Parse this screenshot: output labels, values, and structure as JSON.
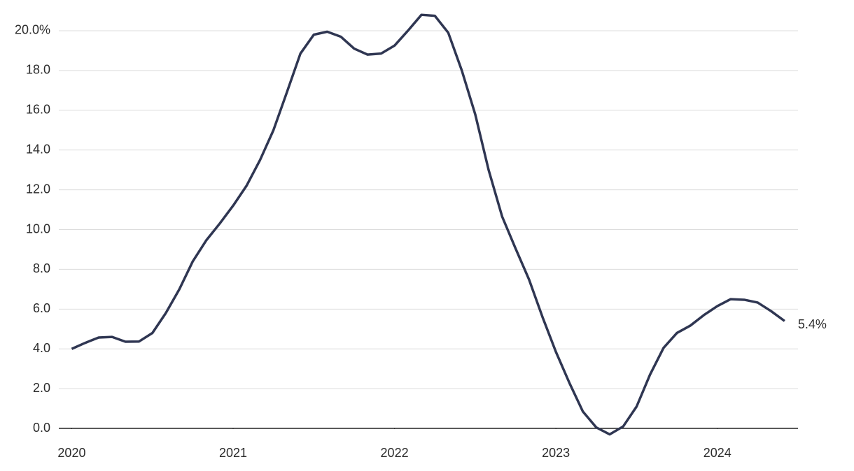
{
  "chart_data": {
    "type": "line",
    "x": [
      2020,
      2020.083,
      2020.167,
      2020.25,
      2020.333,
      2020.417,
      2020.5,
      2020.583,
      2020.667,
      2020.75,
      2020.833,
      2020.917,
      2021,
      2021.083,
      2021.167,
      2021.25,
      2021.333,
      2021.417,
      2021.5,
      2021.583,
      2021.667,
      2021.75,
      2021.833,
      2021.917,
      2022,
      2022.083,
      2022.167,
      2022.25,
      2022.333,
      2022.417,
      2022.5,
      2022.583,
      2022.667,
      2022.75,
      2022.833,
      2022.917,
      2023,
      2023.083,
      2023.167,
      2023.25,
      2023.333,
      2023.417,
      2023.5,
      2023.583,
      2023.667,
      2023.75,
      2023.833,
      2023.917,
      2024,
      2024.083,
      2024.167,
      2024.25,
      2024.333,
      2024.417
    ],
    "series": [
      {
        "color": "#2f3652",
        "values": [
          4.0,
          4.3,
          4.57,
          4.6,
          4.36,
          4.37,
          4.8,
          5.8,
          7.0,
          8.4,
          9.45,
          10.3,
          11.2,
          12.2,
          13.5,
          15.0,
          16.9,
          18.85,
          19.8,
          19.95,
          19.7,
          19.1,
          18.8,
          18.85,
          19.25,
          20.0,
          20.8,
          20.75,
          19.9,
          18.0,
          15.8,
          13.0,
          10.65,
          9.05,
          7.5,
          5.6,
          3.85,
          2.3,
          0.85,
          0.05,
          -0.3,
          0.1,
          1.1,
          2.7,
          4.05,
          4.8,
          5.17,
          5.7,
          6.15,
          6.5,
          6.47,
          6.33,
          5.9,
          5.4
        ],
        "value_labels": [
          null,
          null,
          null,
          null,
          null,
          null,
          null,
          null,
          null,
          null,
          null,
          null,
          null,
          null,
          null,
          null,
          null,
          null,
          null,
          null,
          null,
          null,
          null,
          null,
          null,
          null,
          null,
          null,
          null,
          null,
          null,
          null,
          null,
          null,
          null,
          null,
          null,
          null,
          null,
          null,
          null,
          null,
          null,
          null,
          null,
          null,
          null,
          null,
          null,
          null,
          null,
          null,
          null,
          "5.4%"
        ]
      }
    ],
    "xlim": [
      2019.92,
      2024.5
    ],
    "xticks": [
      2020,
      2021,
      2022,
      2023,
      2024
    ],
    "ylim": [
      -1,
      21
    ],
    "yticks": [
      {
        "value": 0,
        "label": "0.0"
      },
      {
        "value": 2,
        "label": "2.0"
      },
      {
        "value": 4,
        "label": "4.0"
      },
      {
        "value": 6,
        "label": "6.0"
      },
      {
        "value": 8,
        "label": "8.0"
      },
      {
        "value": 10,
        "label": "10.0"
      },
      {
        "value": 12,
        "label": "12.0"
      },
      {
        "value": 14,
        "label": "14.0"
      },
      {
        "value": 16,
        "label": "16.0"
      },
      {
        "value": 18,
        "label": "18.0"
      },
      {
        "value": 20,
        "label": "20.0%"
      }
    ],
    "grid": true
  }
}
